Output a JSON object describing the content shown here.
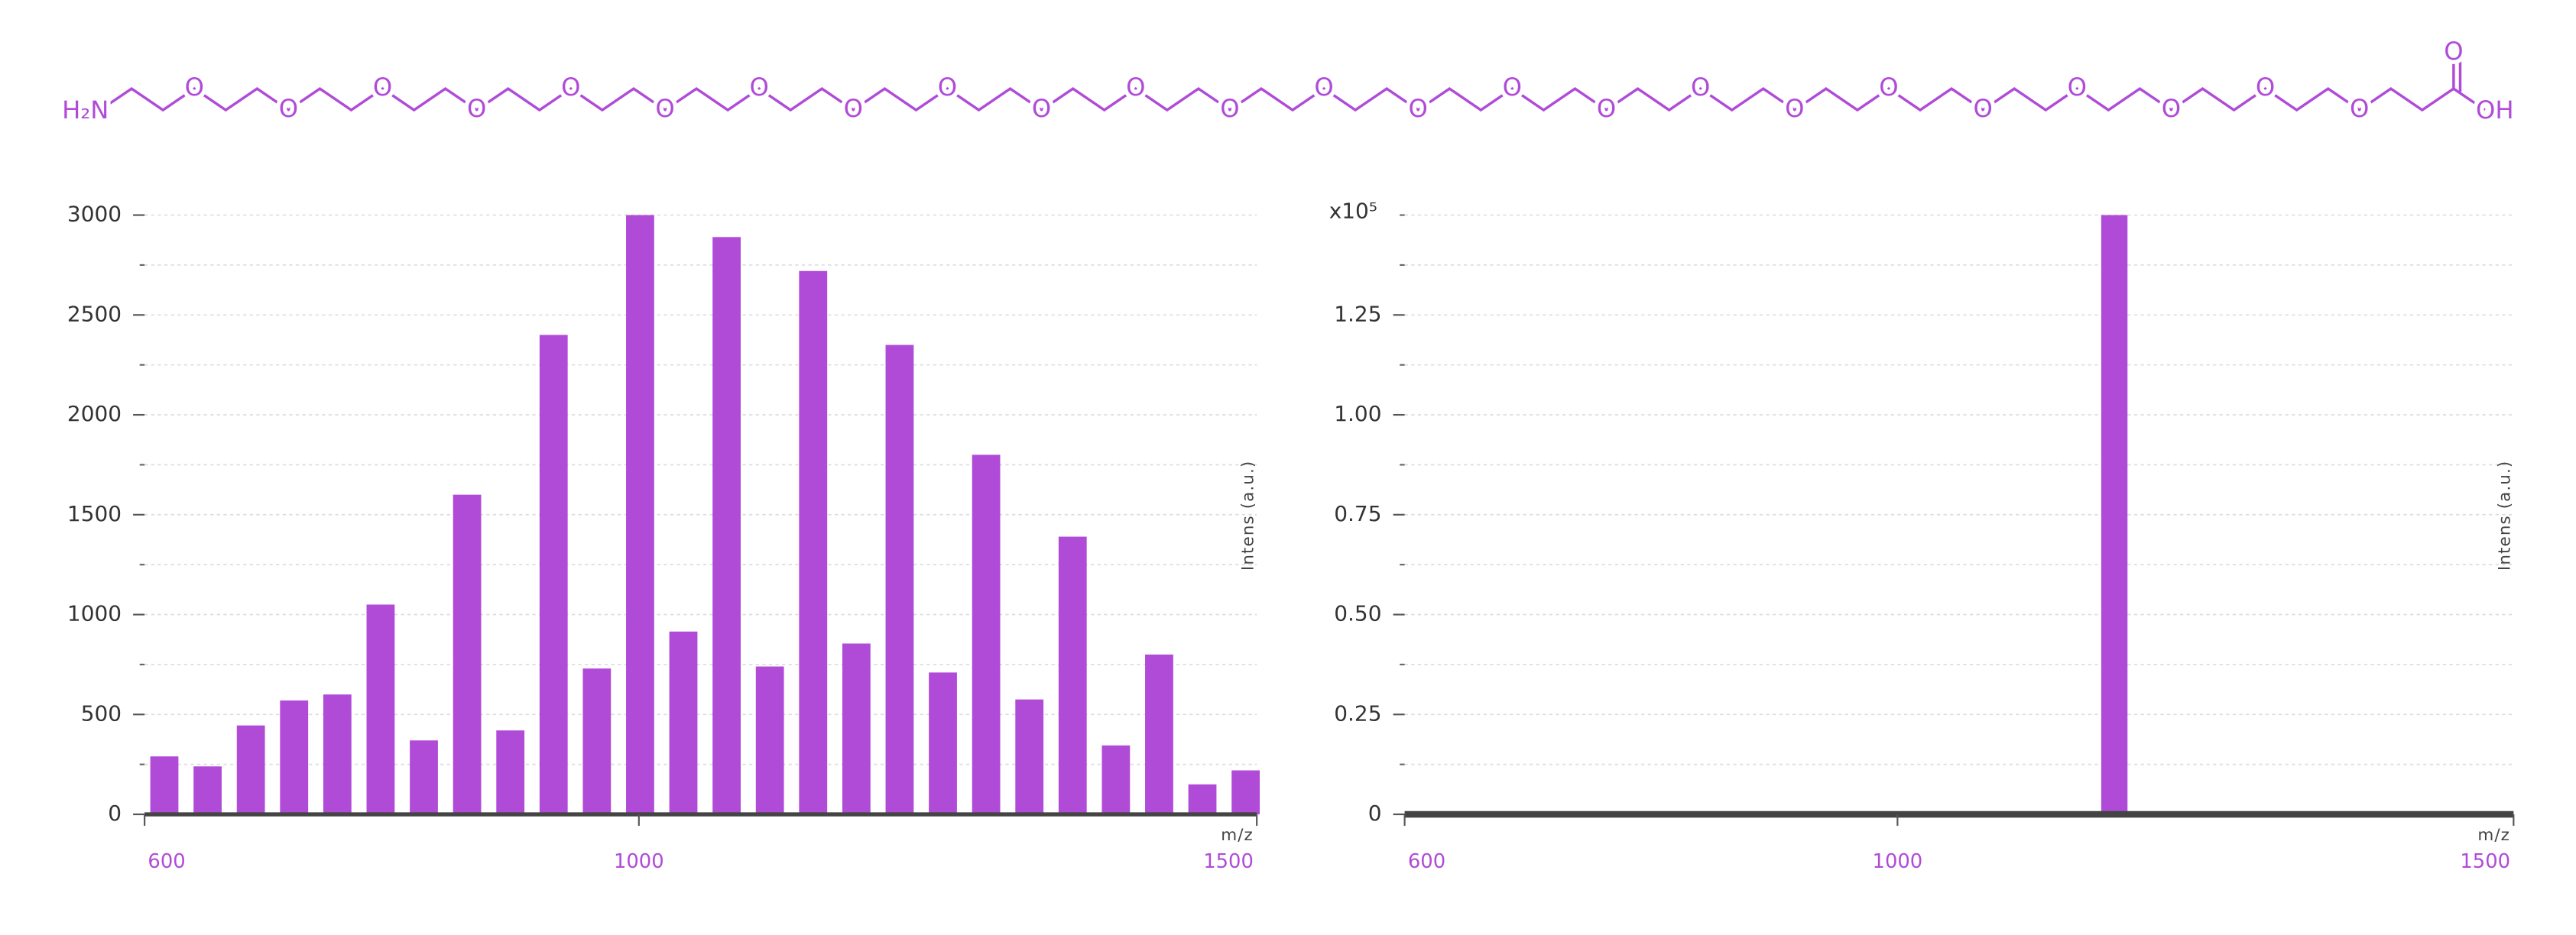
{
  "structure": {
    "amine": "H₂N",
    "ether_oxygens": [
      "O",
      "O",
      "O",
      "O",
      "O",
      "O",
      "O",
      "O",
      "O",
      "O",
      "O",
      "O",
      "O",
      "O",
      "O",
      "O",
      "O",
      "O",
      "O",
      "O",
      "O",
      "O",
      "O",
      "O"
    ],
    "carbonyl_oxygen": "O",
    "acid": "OH"
  },
  "chart_data": [
    {
      "type": "bar",
      "color": "#b04bd8",
      "grid": true,
      "x_label": "m/z",
      "y_label": "Intens (a.u.)",
      "x": [
        616,
        651,
        686,
        721,
        756,
        791,
        826,
        861,
        896,
        931,
        966,
        1001,
        1036,
        1071,
        1106,
        1141,
        1176,
        1211,
        1246,
        1281,
        1316,
        1351,
        1386,
        1421,
        1456,
        1491
      ],
      "values": [
        290,
        240,
        445,
        570,
        600,
        1050,
        370,
        1600,
        420,
        2400,
        730,
        3000,
        915,
        2890,
        740,
        2720,
        855,
        2350,
        710,
        1800,
        575,
        1390,
        345,
        800,
        150,
        220
      ],
      "xlim": [
        600,
        1500
      ],
      "xticks": [
        600,
        1000,
        1500
      ],
      "ylim": [
        0,
        3000
      ],
      "yticks": [
        0,
        500,
        1000,
        1500,
        2000,
        2500,
        3000
      ],
      "yticks_minor": [
        250,
        750,
        1250,
        1750,
        2250,
        2750
      ]
    },
    {
      "type": "bar",
      "color": "#b04bd8",
      "grid": true,
      "x_label": "m/z",
      "y_label": "Intens (a.u.)",
      "y_multiplier": "x10⁵",
      "x": [
        1176
      ],
      "values": [
        1.5
      ],
      "xlim": [
        600,
        1500
      ],
      "xticks": [
        600,
        1000,
        1500
      ],
      "ylim": [
        0,
        1.5
      ],
      "yticks": [
        0,
        0.25,
        {
          "value": 0.5,
          "label": "0.50"
        },
        0.75,
        {
          "value": 1,
          "label": "1.00"
        },
        1.25
      ],
      "yticks_minor": [
        0.125,
        0.375,
        0.625,
        0.875,
        1.125,
        1.375,
        1.5
      ]
    }
  ]
}
